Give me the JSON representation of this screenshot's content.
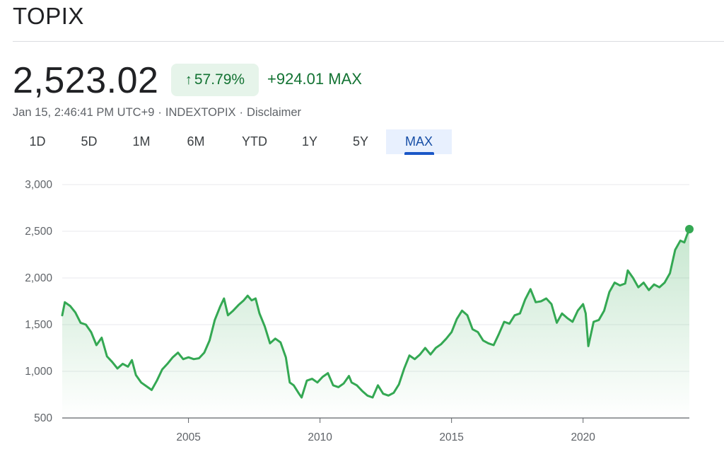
{
  "header": {
    "title": "TOPIX"
  },
  "quote": {
    "price": "2,523.02",
    "percent_change": "57.79%",
    "arrow_icon": "arrow-up-icon",
    "abs_change": "+924.01 MAX",
    "timestamp": "Jan 15, 2:46:41 PM UTC+9",
    "separator": "·",
    "symbol": "INDEXTOPIX",
    "disclaimer": "Disclaimer"
  },
  "tabs": [
    {
      "label": "1D",
      "active": false
    },
    {
      "label": "5D",
      "active": false
    },
    {
      "label": "1M",
      "active": false
    },
    {
      "label": "6M",
      "active": false
    },
    {
      "label": "YTD",
      "active": false
    },
    {
      "label": "1Y",
      "active": false
    },
    {
      "label": "5Y",
      "active": false
    },
    {
      "label": "MAX",
      "active": true
    }
  ],
  "colors": {
    "line": "#34a853",
    "positive_text": "#137333",
    "badge_bg": "#e6f4ea",
    "active_tab_text": "#174ea6",
    "active_tab_indicator": "#1a57c7"
  },
  "chart_data": {
    "type": "area",
    "title": "",
    "xlabel": "",
    "ylabel": "",
    "ylim": [
      500,
      3000
    ],
    "xlim": [
      2000.2,
      2024.04
    ],
    "y_ticks": [
      "3,000",
      "2,500",
      "2,000",
      "1,500",
      "1,000",
      "500"
    ],
    "x_ticks": [
      "2005",
      "2010",
      "2015",
      "2020"
    ],
    "grid": true,
    "legend": "none",
    "series": [
      {
        "values": [
          [
            2000.2,
            1600
          ],
          [
            2000.3,
            1740
          ],
          [
            2000.5,
            1700
          ],
          [
            2000.7,
            1630
          ],
          [
            2000.9,
            1520
          ],
          [
            2001.1,
            1500
          ],
          [
            2001.3,
            1420
          ],
          [
            2001.5,
            1280
          ],
          [
            2001.7,
            1360
          ],
          [
            2001.9,
            1160
          ],
          [
            2002.1,
            1100
          ],
          [
            2002.3,
            1030
          ],
          [
            2002.5,
            1080
          ],
          [
            2002.7,
            1050
          ],
          [
            2002.85,
            1120
          ],
          [
            2003.0,
            960
          ],
          [
            2003.2,
            880
          ],
          [
            2003.4,
            840
          ],
          [
            2003.6,
            800
          ],
          [
            2003.8,
            900
          ],
          [
            2004.0,
            1020
          ],
          [
            2004.2,
            1080
          ],
          [
            2004.4,
            1150
          ],
          [
            2004.6,
            1200
          ],
          [
            2004.8,
            1130
          ],
          [
            2005.0,
            1150
          ],
          [
            2005.2,
            1130
          ],
          [
            2005.4,
            1140
          ],
          [
            2005.6,
            1200
          ],
          [
            2005.8,
            1330
          ],
          [
            2006.0,
            1550
          ],
          [
            2006.2,
            1690
          ],
          [
            2006.35,
            1780
          ],
          [
            2006.5,
            1600
          ],
          [
            2006.7,
            1650
          ],
          [
            2006.9,
            1710
          ],
          [
            2007.1,
            1760
          ],
          [
            2007.25,
            1810
          ],
          [
            2007.4,
            1760
          ],
          [
            2007.55,
            1780
          ],
          [
            2007.7,
            1620
          ],
          [
            2007.9,
            1480
          ],
          [
            2008.1,
            1300
          ],
          [
            2008.3,
            1350
          ],
          [
            2008.5,
            1310
          ],
          [
            2008.7,
            1150
          ],
          [
            2008.85,
            880
          ],
          [
            2009.0,
            850
          ],
          [
            2009.2,
            760
          ],
          [
            2009.3,
            720
          ],
          [
            2009.5,
            900
          ],
          [
            2009.7,
            920
          ],
          [
            2009.9,
            880
          ],
          [
            2010.1,
            940
          ],
          [
            2010.3,
            980
          ],
          [
            2010.5,
            850
          ],
          [
            2010.7,
            830
          ],
          [
            2010.9,
            870
          ],
          [
            2011.1,
            950
          ],
          [
            2011.2,
            880
          ],
          [
            2011.4,
            850
          ],
          [
            2011.6,
            790
          ],
          [
            2011.8,
            740
          ],
          [
            2012.0,
            720
          ],
          [
            2012.2,
            850
          ],
          [
            2012.4,
            760
          ],
          [
            2012.6,
            740
          ],
          [
            2012.8,
            770
          ],
          [
            2013.0,
            860
          ],
          [
            2013.2,
            1030
          ],
          [
            2013.4,
            1170
          ],
          [
            2013.6,
            1130
          ],
          [
            2013.8,
            1180
          ],
          [
            2014.0,
            1250
          ],
          [
            2014.2,
            1180
          ],
          [
            2014.4,
            1250
          ],
          [
            2014.6,
            1290
          ],
          [
            2014.8,
            1350
          ],
          [
            2015.0,
            1420
          ],
          [
            2015.2,
            1560
          ],
          [
            2015.4,
            1650
          ],
          [
            2015.6,
            1600
          ],
          [
            2015.8,
            1450
          ],
          [
            2016.0,
            1420
          ],
          [
            2016.2,
            1330
          ],
          [
            2016.4,
            1300
          ],
          [
            2016.6,
            1280
          ],
          [
            2016.8,
            1400
          ],
          [
            2017.0,
            1530
          ],
          [
            2017.2,
            1510
          ],
          [
            2017.4,
            1600
          ],
          [
            2017.6,
            1620
          ],
          [
            2017.8,
            1770
          ],
          [
            2018.0,
            1880
          ],
          [
            2018.2,
            1740
          ],
          [
            2018.4,
            1750
          ],
          [
            2018.6,
            1780
          ],
          [
            2018.8,
            1720
          ],
          [
            2019.0,
            1520
          ],
          [
            2019.2,
            1620
          ],
          [
            2019.4,
            1570
          ],
          [
            2019.6,
            1530
          ],
          [
            2019.8,
            1650
          ],
          [
            2020.0,
            1720
          ],
          [
            2020.1,
            1620
          ],
          [
            2020.2,
            1270
          ],
          [
            2020.4,
            1530
          ],
          [
            2020.6,
            1550
          ],
          [
            2020.8,
            1650
          ],
          [
            2021.0,
            1850
          ],
          [
            2021.2,
            1950
          ],
          [
            2021.4,
            1920
          ],
          [
            2021.6,
            1940
          ],
          [
            2021.7,
            2080
          ],
          [
            2021.9,
            2000
          ],
          [
            2022.1,
            1900
          ],
          [
            2022.3,
            1950
          ],
          [
            2022.5,
            1870
          ],
          [
            2022.7,
            1930
          ],
          [
            2022.9,
            1900
          ],
          [
            2023.1,
            1950
          ],
          [
            2023.3,
            2050
          ],
          [
            2023.5,
            2300
          ],
          [
            2023.7,
            2400
          ],
          [
            2023.85,
            2380
          ],
          [
            2023.95,
            2460
          ],
          [
            2024.04,
            2523.02
          ]
        ]
      }
    ]
  }
}
